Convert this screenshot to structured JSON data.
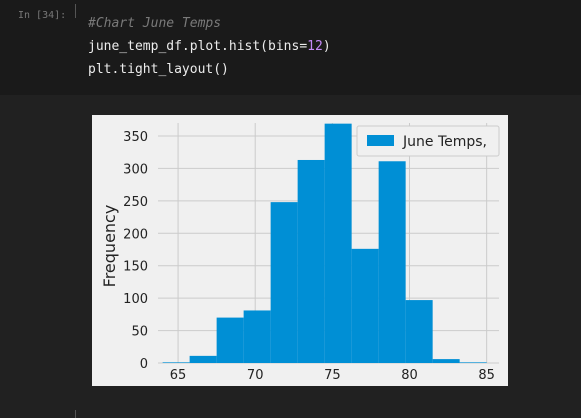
{
  "cell": {
    "prompt": "In [34]:",
    "code_comment": "#Chart June Temps",
    "code_line2_pre": "june_temp_df.plot.hist(bins=",
    "code_line2_num": "12",
    "code_line2_post": ")",
    "code_line3": "plt.tight_layout()"
  },
  "chart_data": {
    "type": "bar",
    "title": "",
    "xlabel": "",
    "ylabel": "Frequency",
    "xlim": [
      63.7,
      85.8
    ],
    "ylim": [
      0,
      370
    ],
    "x_ticks": [
      65,
      70,
      75,
      80,
      85
    ],
    "y_ticks": [
      0,
      50,
      100,
      150,
      200,
      250,
      300,
      350
    ],
    "grid": true,
    "legend_position": "top-right",
    "bin_edges": [
      64,
      65.75,
      67.5,
      69.25,
      71,
      72.75,
      74.5,
      76.25,
      78,
      79.75,
      81.5,
      83.25,
      85
    ],
    "series": [
      {
        "name": "June Temps,",
        "values": [
          1,
          11,
          70,
          81,
          248,
          313,
          369,
          176,
          311,
          97,
          6,
          1
        ]
      }
    ],
    "color": "#008fd5"
  }
}
